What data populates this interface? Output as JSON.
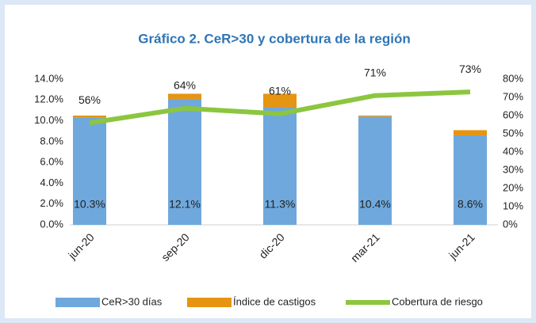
{
  "chart_data": {
    "type": "bar",
    "stacked": true,
    "title": "Gráfico 2. CeR>30 y cobertura de la región",
    "categories": [
      "jun-20",
      "sep-20",
      "dic-20",
      "mar-21",
      "jun-21"
    ],
    "series": [
      {
        "name": "CeR>30 días",
        "type": "bar",
        "color": "#6fa8dc",
        "values": [
          10.3,
          12.1,
          11.3,
          10.4,
          8.6
        ],
        "value_labels": [
          "10.3%",
          "12.1%",
          "11.3%",
          "10.4%",
          "8.6%"
        ]
      },
      {
        "name": "Índice de castigos",
        "type": "bar",
        "color": "#e69512",
        "values": [
          0.2,
          0.5,
          1.3,
          0.1,
          0.5
        ]
      },
      {
        "name": "Cobertura de riesgo",
        "type": "line",
        "axis": "y2",
        "color": "#8cc63f",
        "values": [
          56,
          64,
          61,
          71,
          73
        ],
        "value_labels": [
          "56%",
          "64%",
          "61%",
          "71%",
          "73%"
        ]
      }
    ],
    "ylim": [
      0,
      14
    ],
    "yticks": [
      {
        "value": 0,
        "label": "0.0%"
      },
      {
        "value": 2,
        "label": "2.0%"
      },
      {
        "value": 4,
        "label": "4.0%"
      },
      {
        "value": 6,
        "label": "6.0%"
      },
      {
        "value": 8,
        "label": "8.0%"
      },
      {
        "value": 10,
        "label": "10.0%"
      },
      {
        "value": 12,
        "label": "12.0%"
      },
      {
        "value": 14,
        "label": "14.0%"
      }
    ],
    "y2lim": [
      0,
      80
    ],
    "y2ticks": [
      {
        "value": 0,
        "label": "0%"
      },
      {
        "value": 10,
        "label": "10%"
      },
      {
        "value": 20,
        "label": "20%"
      },
      {
        "value": 30,
        "label": "30%"
      },
      {
        "value": 40,
        "label": "40%"
      },
      {
        "value": 50,
        "label": "50%"
      },
      {
        "value": 60,
        "label": "60%"
      },
      {
        "value": 70,
        "label": "70%"
      },
      {
        "value": 80,
        "label": "80%"
      }
    ],
    "legend": "bottom"
  }
}
